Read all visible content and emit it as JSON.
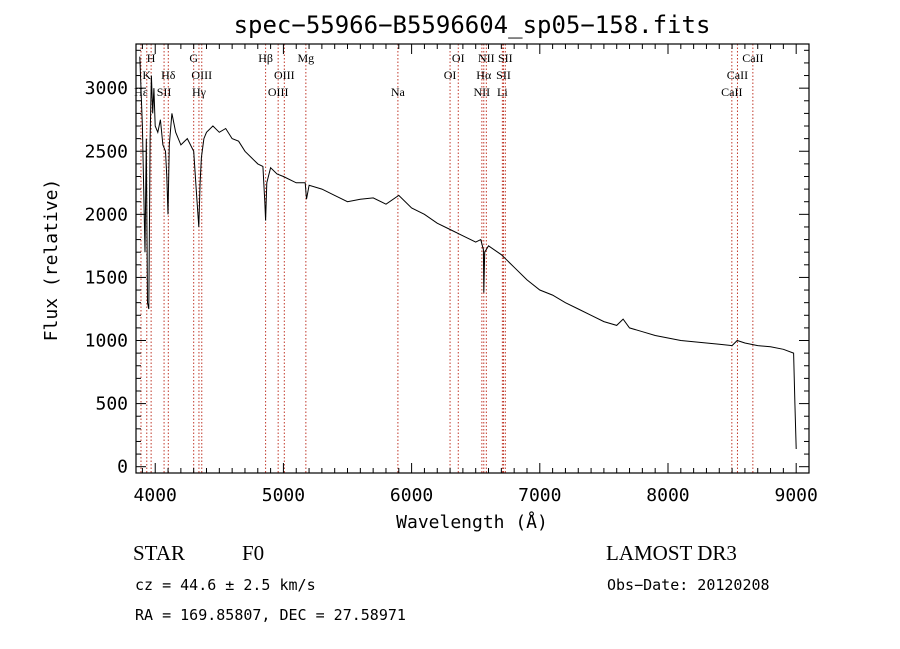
{
  "chart_data": {
    "type": "line",
    "title": "spec−55966−B5596604_sp05−158.fits",
    "xlabel": "Wavelength (Å)",
    "ylabel": "Flux (relative)",
    "xlim": [
      3850,
      9100
    ],
    "ylim": [
      -50,
      3350
    ],
    "xticks": [
      4000,
      5000,
      6000,
      7000,
      8000,
      9000
    ],
    "yticks": [
      0,
      500,
      1000,
      1500,
      2000,
      2500,
      3000
    ],
    "series": [
      {
        "name": "spectrum",
        "x": [
          3880,
          3900,
          3910,
          3920,
          3930,
          3940,
          3950,
          3960,
          3970,
          3980,
          3990,
          4000,
          4020,
          4040,
          4060,
          4080,
          4090,
          4100,
          4110,
          4130,
          4160,
          4200,
          4250,
          4300,
          4320,
          4340,
          4350,
          4360,
          4380,
          4400,
          4450,
          4500,
          4550,
          4600,
          4650,
          4700,
          4750,
          4800,
          4840,
          4855,
          4861,
          4870,
          4900,
          4950,
          5000,
          5100,
          5170,
          5180,
          5200,
          5300,
          5400,
          5500,
          5600,
          5700,
          5800,
          5900,
          6000,
          6100,
          6200,
          6300,
          6400,
          6500,
          6540,
          6560,
          6563,
          6570,
          6600,
          6700,
          6800,
          6900,
          7000,
          7100,
          7200,
          7300,
          7400,
          7500,
          7600,
          7650,
          7700,
          7800,
          7900,
          8000,
          8100,
          8200,
          8300,
          8400,
          8500,
          8540,
          8600,
          8700,
          8800,
          8900,
          8980,
          8990,
          9000
        ],
        "y": [
          3250,
          2700,
          2200,
          1700,
          2600,
          1300,
          1250,
          2600,
          3100,
          2800,
          3000,
          2700,
          2650,
          2750,
          2550,
          2500,
          2300,
          2000,
          2550,
          2800,
          2650,
          2550,
          2600,
          2500,
          2200,
          1900,
          2250,
          2450,
          2600,
          2650,
          2700,
          2650,
          2680,
          2600,
          2580,
          2500,
          2450,
          2400,
          2380,
          2100,
          1950,
          2250,
          2370,
          2320,
          2300,
          2250,
          2250,
          2120,
          2230,
          2200,
          2150,
          2100,
          2120,
          2130,
          2080,
          2150,
          2050,
          2000,
          1930,
          1880,
          1830,
          1780,
          1800,
          1720,
          1380,
          1700,
          1750,
          1680,
          1580,
          1480,
          1400,
          1360,
          1300,
          1250,
          1200,
          1150,
          1120,
          1170,
          1100,
          1070,
          1040,
          1020,
          1000,
          990,
          980,
          970,
          960,
          1000,
          980,
          960,
          950,
          930,
          900,
          500,
          140
        ]
      }
    ],
    "line_markers": [
      {
        "label": "H",
        "x": 3968,
        "row": 0
      },
      {
        "label": "K",
        "x": 3934,
        "row": 1
      },
      {
        "label": "Hδ",
        "x": 4102,
        "row": 1
      },
      {
        "label": "Hε",
        "x": 3889,
        "row": 2
      },
      {
        "label": "SII",
        "x": 4069,
        "row": 2
      },
      {
        "label": "G",
        "x": 4300,
        "row": 0
      },
      {
        "label": "OIII",
        "x": 4363,
        "row": 1
      },
      {
        "label": "Hγ",
        "x": 4341,
        "row": 2
      },
      {
        "label": "Hβ",
        "x": 4861,
        "row": 0
      },
      {
        "label": "OIII",
        "x": 5007,
        "row": 1
      },
      {
        "label": "OIII",
        "x": 4959,
        "row": 2
      },
      {
        "label": "Mg",
        "x": 5175,
        "row": 0
      },
      {
        "label": "Na",
        "x": 5893,
        "row": 2
      },
      {
        "label": "OI",
        "x": 6364,
        "row": 0
      },
      {
        "label": "OI",
        "x": 6300,
        "row": 1
      },
      {
        "label": "NII",
        "x": 6583,
        "row": 0
      },
      {
        "label": "Hα",
        "x": 6563,
        "row": 1
      },
      {
        "label": "NII",
        "x": 6548,
        "row": 2
      },
      {
        "label": "SII",
        "x": 6731,
        "row": 0
      },
      {
        "label": "SII",
        "x": 6717,
        "row": 1
      },
      {
        "label": "Li",
        "x": 6708,
        "row": 2
      },
      {
        "label": "CaII",
        "x": 8662,
        "row": 0
      },
      {
        "label": "CaII",
        "x": 8542,
        "row": 1
      },
      {
        "label": "CaII",
        "x": 8498,
        "row": 2
      }
    ]
  },
  "info": {
    "class": "STAR",
    "subclass": "F0",
    "survey": "LAMOST DR3",
    "redshift": "cz = 44.6 ± 2.5 km/s",
    "obs_date": "Obs−Date: 20120208",
    "coords": "RA = 169.85807, DEC =  27.58971"
  },
  "colors": {
    "axis": "#000000",
    "line": "#000000",
    "marker_line": "#c0392b"
  }
}
